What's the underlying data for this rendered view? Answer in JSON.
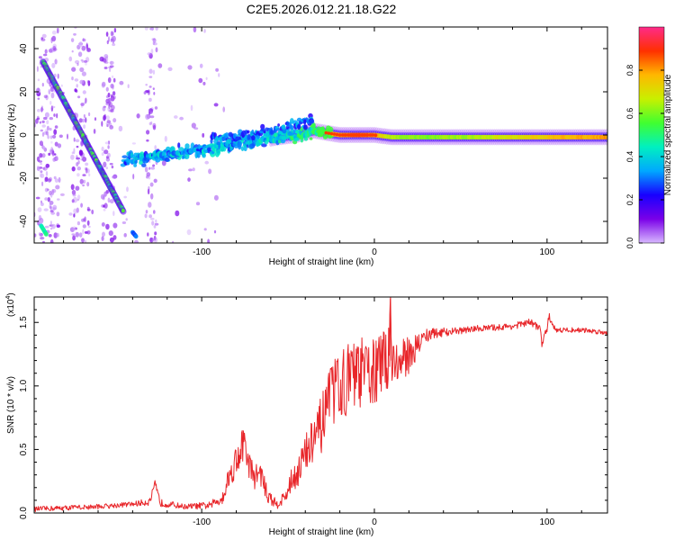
{
  "title": "C2E5.2026.012.21.18.G22",
  "colors": {
    "snr_line": "#e8262a",
    "frame": "#000000",
    "background": "#ffffff"
  },
  "chart_data": [
    {
      "type": "heatmap",
      "name": "spectrogram",
      "xlabel": "Height of straight line (km)",
      "ylabel": "Frequency (Hz)",
      "xlim": [
        -197,
        135
      ],
      "ylim": [
        -50,
        50
      ],
      "x_ticks": [
        -100,
        0,
        100
      ],
      "y_ticks": [
        -40,
        -20,
        0,
        20,
        40
      ],
      "x_tick_labels": [
        "-100",
        "0",
        "100"
      ],
      "y_tick_labels": [
        "-40",
        "-20",
        "0",
        "20",
        "40"
      ],
      "colorbar": {
        "label": "Normalized spectral amplitude",
        "range": [
          0,
          1
        ],
        "ticks": [
          0.0,
          0.2,
          0.4,
          0.6,
          0.8
        ],
        "tick_labels": [
          "0.0",
          "0.2",
          "0.4",
          "0.6",
          "0.8"
        ],
        "stops": [
          "#d8b8ff",
          "#7a00e8",
          "#1800ff",
          "#00a8ff",
          "#00f0c0",
          "#40ff30",
          "#c8f000",
          "#ffb800",
          "#ff3000",
          "#ff2a8a"
        ]
      },
      "features": [
        {
          "name": "descending streak",
          "x": [
            -192,
            -145
          ],
          "y": [
            34,
            -36
          ],
          "amplitude": 0.55
        },
        {
          "name": "main trace",
          "x": [
            -145,
            -130,
            -110,
            -90,
            -70,
            -55,
            -45,
            -35,
            -28,
            -20,
            -10,
            0,
            10,
            30,
            60,
            100,
            135
          ],
          "y": [
            -12,
            -10,
            -8,
            -6,
            -3,
            -1,
            0,
            2,
            1,
            0,
            0,
            0,
            -1,
            -1,
            -1,
            -1,
            -1
          ],
          "amplitude": [
            0.3,
            0.35,
            0.35,
            0.35,
            0.35,
            0.4,
            0.45,
            0.5,
            0.7,
            0.8,
            0.85,
            0.8,
            0.65,
            0.6,
            0.65,
            0.75,
            0.8
          ]
        },
        {
          "name": "upper branch",
          "x": [
            -95,
            -75,
            -60,
            -50,
            -40,
            -35
          ],
          "y": [
            -2,
            0,
            2,
            4,
            6,
            7
          ],
          "amplitude": 0.3
        },
        {
          "name": "lower-left spot",
          "x": [
            -193,
            -190
          ],
          "y": [
            -42,
            -46
          ],
          "amplitude": 0.45
        },
        {
          "name": "bottom spot",
          "x": [
            -140,
            -138
          ],
          "y": [
            -45,
            -47
          ],
          "amplitude": 0.3
        }
      ]
    },
    {
      "type": "line",
      "name": "snr",
      "xlabel": "Height of straight line (km)",
      "ylabel": "SNR (10 * v/v)",
      "y_scale_label": "(x10",
      "y_scale_exp": "4",
      "y_scale_close": ")",
      "xlim": [
        -197,
        135
      ],
      "ylim": [
        0,
        1.7
      ],
      "x_ticks": [
        -100,
        0,
        100
      ],
      "y_ticks": [
        0.0,
        0.5,
        1.0,
        1.5
      ],
      "x_tick_labels": [
        "-100",
        "0",
        "100"
      ],
      "y_tick_labels": [
        "0.0",
        "0.5",
        "1.0",
        "1.5"
      ],
      "series": [
        {
          "name": "SNR",
          "x": [
            -197,
            -180,
            -160,
            -140,
            -130,
            -127,
            -124,
            -110,
            -95,
            -88,
            -85,
            -80,
            -76,
            -74,
            -70,
            -66,
            -62,
            -57,
            -52,
            -48,
            -44,
            -40,
            -36,
            -32,
            -28,
            -24,
            -20,
            -16,
            -12,
            -8,
            -4,
            0,
            4,
            8,
            9,
            10,
            14,
            20,
            25,
            30,
            40,
            60,
            80,
            90,
            96,
            97,
            100,
            101,
            105,
            120,
            135
          ],
          "y": [
            0.03,
            0.04,
            0.05,
            0.07,
            0.09,
            0.22,
            0.08,
            0.05,
            0.06,
            0.12,
            0.25,
            0.42,
            0.55,
            0.45,
            0.28,
            0.32,
            0.14,
            0.07,
            0.12,
            0.25,
            0.35,
            0.45,
            0.55,
            0.65,
            0.78,
            0.95,
            1.0,
            1.05,
            1.08,
            1.1,
            1.1,
            1.12,
            1.15,
            1.2,
            1.68,
            1.25,
            1.15,
            1.25,
            1.32,
            1.4,
            1.42,
            1.45,
            1.47,
            1.5,
            1.46,
            1.32,
            1.45,
            1.55,
            1.44,
            1.44,
            1.42
          ],
          "noise": [
            0.02,
            0.02,
            0.02,
            0.02,
            0.03,
            0.04,
            0.03,
            0.02,
            0.03,
            0.05,
            0.09,
            0.13,
            0.15,
            0.13,
            0.1,
            0.1,
            0.06,
            0.04,
            0.06,
            0.1,
            0.14,
            0.17,
            0.2,
            0.22,
            0.25,
            0.27,
            0.27,
            0.28,
            0.28,
            0.28,
            0.28,
            0.28,
            0.27,
            0.25,
            0.25,
            0.22,
            0.2,
            0.15,
            0.1,
            0.06,
            0.03,
            0.025,
            0.025,
            0.03,
            0.03,
            0.03,
            0.03,
            0.03,
            0.02,
            0.02,
            0.02
          ]
        }
      ]
    }
  ]
}
